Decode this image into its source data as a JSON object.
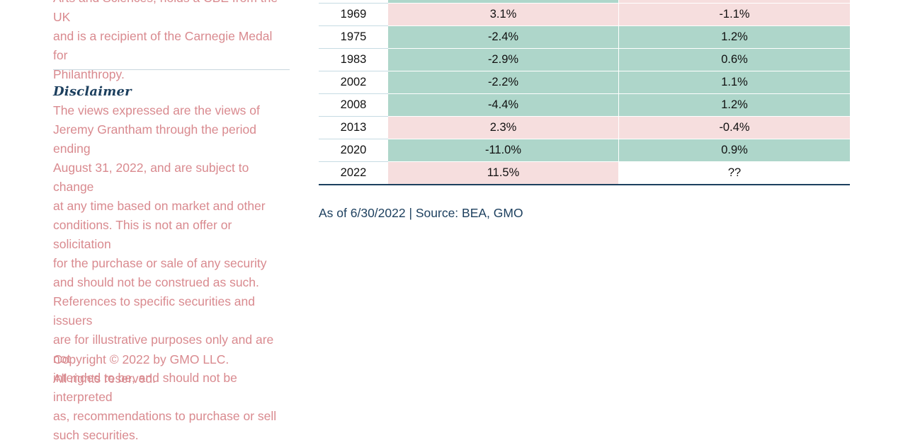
{
  "sidebar": {
    "bio_lines": [
      "Arts and Sciences, holds a CBE from the UK",
      "and is a recipient of the Carnegie Medal for",
      "Philanthropy."
    ],
    "disclaimer_title": "Disclaimer",
    "disclaimer_lines": [
      "The views expressed are the views of",
      "Jeremy Grantham through the period ending",
      "August 31, 2022, and are subject to change",
      "at any time based on market and other",
      "conditions. This is not an offer or solicitation",
      "for the purchase or sale of any security",
      "and should not be construed as such.",
      "References to specific securities and issuers",
      "are for illustrative purposes only and are not",
      "intended to be, and should not be interpreted",
      "as, recommendations to purchase or sell",
      "such securities."
    ],
    "copyright_lines": [
      "Copyright © 2022 by GMO LLC.",
      "All rights reserved."
    ]
  },
  "table": {
    "rows": [
      {
        "year": "1969",
        "col1": "3.1%",
        "col2": "-1.1%",
        "col1_color": "#f6dede",
        "col2_color": "#f6dede"
      },
      {
        "year": "1975",
        "col1": "-2.4%",
        "col2": "1.2%",
        "col1_color": "#aed6ca",
        "col2_color": "#aed6ca"
      },
      {
        "year": "1983",
        "col1": "-2.9%",
        "col2": "0.6%",
        "col1_color": "#aed6ca",
        "col2_color": "#aed6ca"
      },
      {
        "year": "2002",
        "col1": "-2.2%",
        "col2": "1.1%",
        "col1_color": "#aed6ca",
        "col2_color": "#aed6ca"
      },
      {
        "year": "2008",
        "col1": "-4.4%",
        "col2": "1.2%",
        "col1_color": "#aed6ca",
        "col2_color": "#aed6ca"
      },
      {
        "year": "2013",
        "col1": "2.3%",
        "col2": "-0.4%",
        "col1_color": "#f6dede",
        "col2_color": "#f6dede"
      },
      {
        "year": "2020",
        "col1": "-11.0%",
        "col2": "0.9%",
        "col1_color": "#aed6ca",
        "col2_color": "#aed6ca"
      },
      {
        "year": "2022",
        "col1": "11.5%",
        "col2": "??",
        "col1_color": "#f6dede",
        "col2_color": "#ffffff"
      }
    ]
  },
  "source_note": "As of 6/30/2022 | Source: BEA, GMO"
}
